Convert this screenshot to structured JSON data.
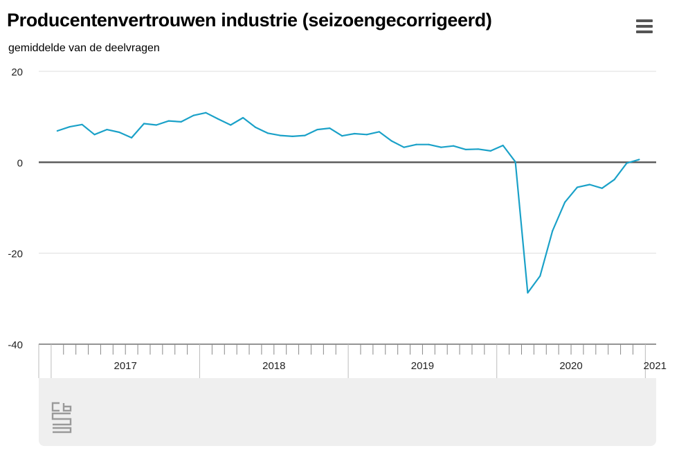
{
  "header": {
    "title": "Producentenvertrouwen industrie (seizoengecorrigeerd)",
    "subtitle": "gemiddelde van de deelvragen",
    "menu_icon": "hamburger-menu-icon"
  },
  "footer": {
    "logo_icon": "cbs-logo-icon"
  },
  "colors": {
    "series": "#1aa1c8",
    "zero_line": "#555555",
    "grid": "#dddddd",
    "axis": "#555555",
    "footer_band": "#efefef"
  },
  "chart_data": {
    "type": "line",
    "title": "Producentenvertrouwen industrie (seizoengecorrigeerd)",
    "ylabel": "gemiddelde van de deelvragen",
    "ylim": [
      -40,
      20
    ],
    "yticks": [
      20,
      0,
      -20,
      -40
    ],
    "xlim": [
      "2016-12",
      "2021-01"
    ],
    "year_labels": [
      "2017",
      "2018",
      "2019",
      "2020",
      "2021"
    ],
    "grid": true,
    "series": [
      {
        "x": [
          "2017-01",
          "2017-02",
          "2017-03",
          "2017-04",
          "2017-05",
          "2017-06",
          "2017-07",
          "2017-08",
          "2017-09",
          "2017-10",
          "2017-11",
          "2017-12",
          "2018-01",
          "2018-02",
          "2018-03",
          "2018-04",
          "2018-05",
          "2018-06",
          "2018-07",
          "2018-08",
          "2018-09",
          "2018-10",
          "2018-11",
          "2018-12",
          "2019-01",
          "2019-02",
          "2019-03",
          "2019-04",
          "2019-05",
          "2019-06",
          "2019-07",
          "2019-08",
          "2019-09",
          "2019-10",
          "2019-11",
          "2019-12",
          "2020-01",
          "2020-02",
          "2020-03",
          "2020-04",
          "2020-05",
          "2020-06",
          "2020-07",
          "2020-08",
          "2020-09",
          "2020-10",
          "2020-11",
          "2020-12",
          "2021-01"
        ],
        "values": [
          6.9,
          7.8,
          8.3,
          6.1,
          7.2,
          6.6,
          5.4,
          8.5,
          8.2,
          9.1,
          8.9,
          10.3,
          10.9,
          9.5,
          8.2,
          9.8,
          7.7,
          6.4,
          5.9,
          5.7,
          5.9,
          7.2,
          7.5,
          5.8,
          6.3,
          6.1,
          6.7,
          4.7,
          3.3,
          3.9,
          3.9,
          3.3,
          3.6,
          2.8,
          2.9,
          2.5,
          3.7,
          0.1,
          -28.7,
          -25.0,
          -15.1,
          -8.8,
          -5.5,
          -4.9,
          -5.7,
          -3.8,
          -0.2,
          0.6,
          null
        ]
      }
    ]
  }
}
